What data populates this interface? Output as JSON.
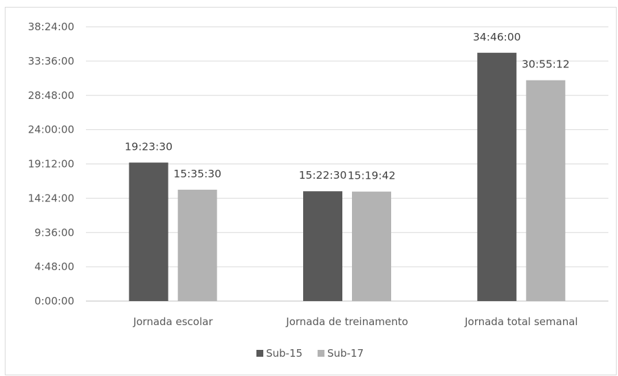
{
  "chart_data": {
    "type": "bar",
    "title": "",
    "xlabel": "",
    "ylabel": "",
    "categories": [
      "Jornada escolar",
      "Jornada de treinamento",
      "Jornada total semanal"
    ],
    "series": [
      {
        "name": "Sub-15",
        "color": "#595959",
        "values": [
          "19:23:30",
          "15:22:30",
          "34:46:00"
        ]
      },
      {
        "name": "Sub-17",
        "color": "#b3b3b3",
        "values": [
          "15:35:30",
          "15:19:42",
          "30:55:12"
        ]
      }
    ],
    "yticks": [
      "0:00:00",
      "4:48:00",
      "9:36:00",
      "14:24:00",
      "19:12:00",
      "24:00:00",
      "28:48:00",
      "33:36:00",
      "38:24:00"
    ],
    "ylim": [
      "0:00:00",
      "38:24:00"
    ],
    "grid": true,
    "legend": "bottom-center"
  }
}
